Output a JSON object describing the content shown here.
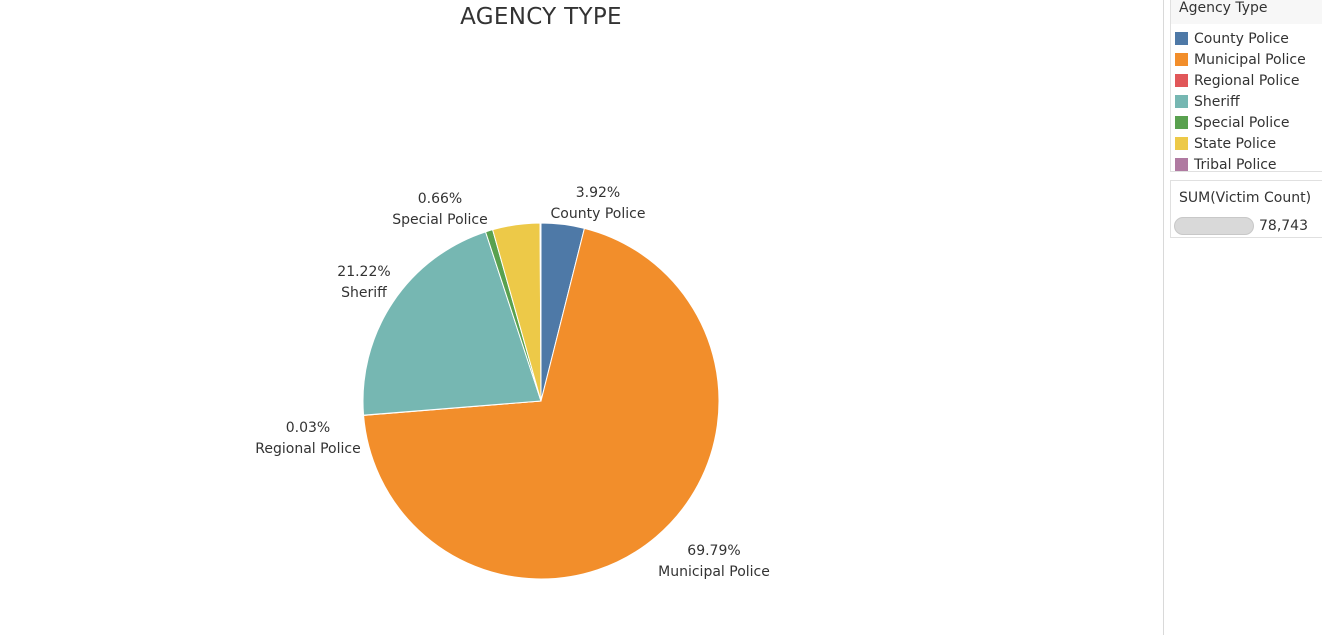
{
  "chart_data": {
    "type": "pie",
    "title": "AGENCY TYPE",
    "categories": [
      "County Police",
      "Municipal Police",
      "Regional Police",
      "Sheriff",
      "Special Police",
      "State Police",
      "Tribal Police"
    ],
    "values": [
      3.92,
      69.79,
      0.03,
      21.22,
      0.66,
      4.3,
      0.08
    ],
    "labels": [
      {
        "category": "County Police",
        "percent": "3.92%"
      },
      {
        "category": "Municipal Police",
        "percent": "69.79%"
      },
      {
        "category": "Regional Police",
        "percent": "0.03%"
      },
      {
        "category": "Sheriff",
        "percent": "21.22%"
      },
      {
        "category": "Special Police",
        "percent": "0.66%"
      }
    ],
    "colors": [
      "#4e79a7",
      "#f28e2b",
      "#e15759",
      "#76b7b2",
      "#59a14f",
      "#edc948",
      "#b07aa1"
    ],
    "legend_position": "right"
  },
  "legend": {
    "title": "Agency Type",
    "items": [
      "County Police",
      "Municipal Police",
      "Regional Police",
      "Sheriff",
      "Special Police",
      "State Police",
      "Tribal Police"
    ]
  },
  "size_legend": {
    "title": "SUM(Victim Count)",
    "value": "78,743"
  }
}
